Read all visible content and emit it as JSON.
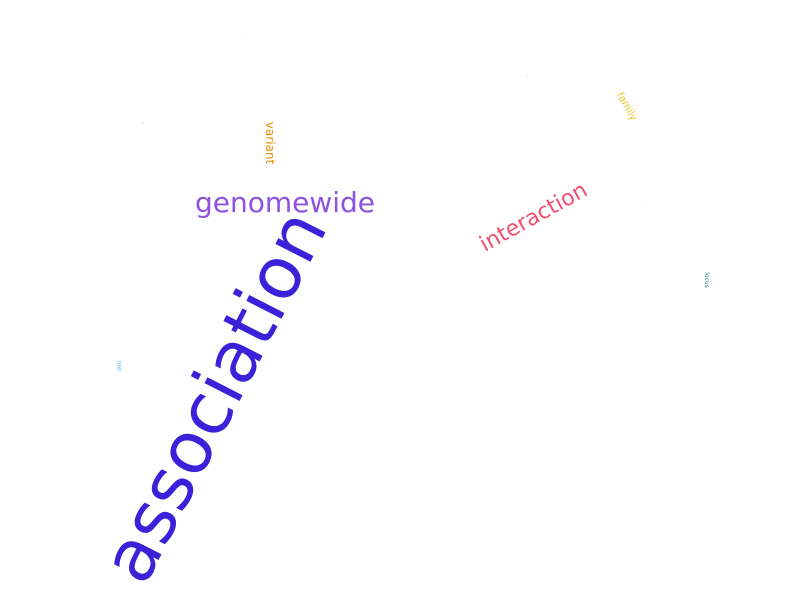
{
  "words": {
    "association": {
      "text": "association",
      "color": "#3b22d8"
    },
    "genomewide": {
      "text": "genomewide",
      "color": "#8f52e0"
    },
    "interaction": {
      "text": "interaction",
      "color": "#f0506e"
    },
    "variant": {
      "text": "variant",
      "color": "#f08c00"
    },
    "family": {
      "text": "family",
      "color": "#f0c21e"
    },
    "locus": {
      "text": "locus",
      "color": "#1b7a8c"
    },
    "trait": {
      "text": "trait",
      "color": "#2bb6e8"
    },
    "tiny1": {
      "text": "",
      "color": "#35c0e0"
    },
    "tiny2": {
      "text": "",
      "color": "#2a9fa8"
    },
    "tiny3": {
      "text": "",
      "color": "#d0d0d0"
    },
    "tiny4": {
      "text": "",
      "color": "#8fd08f"
    }
  }
}
